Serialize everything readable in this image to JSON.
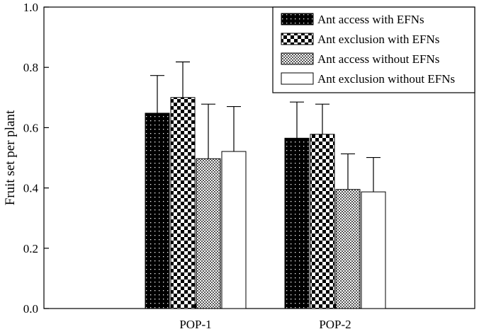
{
  "chart_data": {
    "type": "bar",
    "title": "",
    "xlabel": "",
    "ylabel": "Fruit set per plant",
    "ylim": [
      0,
      1.0
    ],
    "yticks": [
      "0.0",
      "0.2",
      "0.4",
      "0.6",
      "0.8",
      "1.0"
    ],
    "categories": [
      "POP-1",
      "POP-2"
    ],
    "grid": false,
    "legend_position": "top-right",
    "series": [
      {
        "name": "Ant access with EFNs",
        "pattern": "dots-on-black",
        "values": [
          0.648,
          0.565
        ],
        "error": [
          0.125,
          0.12
        ]
      },
      {
        "name": "Ant exclusion with EFNs",
        "pattern": "checkerboard",
        "values": [
          0.7,
          0.578
        ],
        "error": [
          0.118,
          0.1
        ]
      },
      {
        "name": "Ant access without EFNs",
        "pattern": "fine-gray-check",
        "values": [
          0.497,
          0.395
        ],
        "error": [
          0.181,
          0.118
        ]
      },
      {
        "name": "Ant exclusion without EFNs",
        "pattern": "white",
        "values": [
          0.521,
          0.387
        ],
        "error": [
          0.149,
          0.114
        ]
      }
    ]
  }
}
